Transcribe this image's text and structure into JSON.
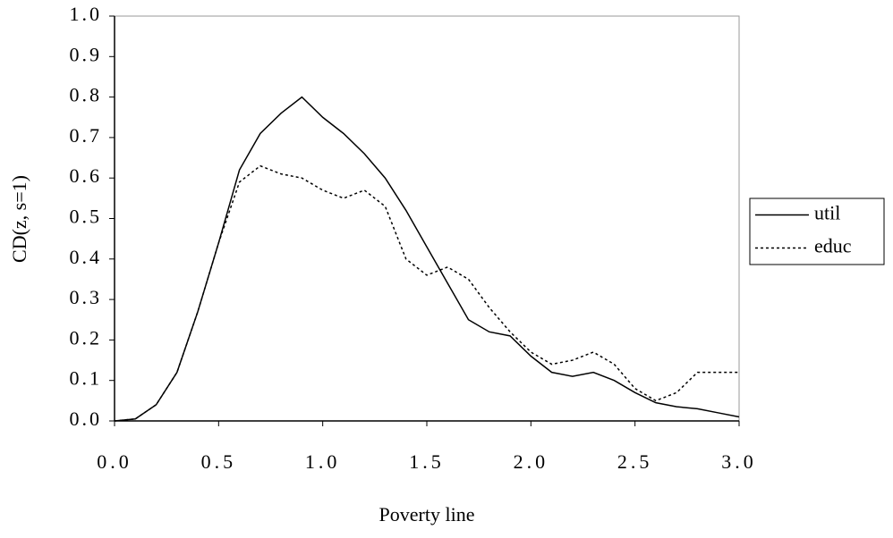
{
  "chart_data": {
    "type": "line",
    "xlabel": "Poverty line",
    "ylabel": "CD(z, s=1)",
    "x": [
      0.0,
      0.1,
      0.2,
      0.3,
      0.4,
      0.5,
      0.6,
      0.7,
      0.8,
      0.9,
      1.0,
      1.1,
      1.2,
      1.3,
      1.4,
      1.5,
      1.6,
      1.7,
      1.8,
      1.9,
      2.0,
      2.1,
      2.2,
      2.3,
      2.4,
      2.5,
      2.6,
      2.7,
      2.8,
      2.9,
      3.0
    ],
    "series": [
      {
        "name": "util",
        "color": "#000000",
        "dash": false,
        "values": [
          0,
          0.005,
          0.04,
          0.12,
          0.27,
          0.44,
          0.62,
          0.71,
          0.76,
          0.8,
          0.75,
          0.71,
          0.66,
          0.6,
          0.52,
          0.43,
          0.34,
          0.25,
          0.22,
          0.21,
          0.16,
          0.12,
          0.11,
          0.12,
          0.1,
          0.07,
          0.045,
          0.035,
          0.03,
          0.02,
          0.01
        ]
      },
      {
        "name": "educ",
        "color": "#000000",
        "dash": true,
        "values": [
          0,
          0.005,
          0.04,
          0.12,
          0.27,
          0.44,
          0.59,
          0.63,
          0.61,
          0.6,
          0.57,
          0.55,
          0.57,
          0.53,
          0.4,
          0.36,
          0.38,
          0.35,
          0.28,
          0.22,
          0.17,
          0.14,
          0.15,
          0.17,
          0.14,
          0.08,
          0.05,
          0.07,
          0.12,
          0.12,
          0.12
        ]
      }
    ],
    "xlim": [
      0,
      3
    ],
    "xticks": [
      {
        "value": 0,
        "label": "0.0"
      },
      0.5,
      {
        "value": 1,
        "label": "1.0"
      },
      1.5,
      {
        "value": 2,
        "label": "2.0"
      },
      2.5,
      {
        "value": 3,
        "label": "3.0"
      }
    ],
    "ylim": [
      0,
      1
    ],
    "yticks": [
      {
        "value": 0,
        "label": "0.0"
      },
      0.1,
      0.2,
      0.3,
      0.4,
      0.5,
      0.6,
      0.7,
      0.8,
      0.9,
      {
        "value": 1,
        "label": "1.0"
      }
    ],
    "grid": false,
    "legend": "right"
  }
}
